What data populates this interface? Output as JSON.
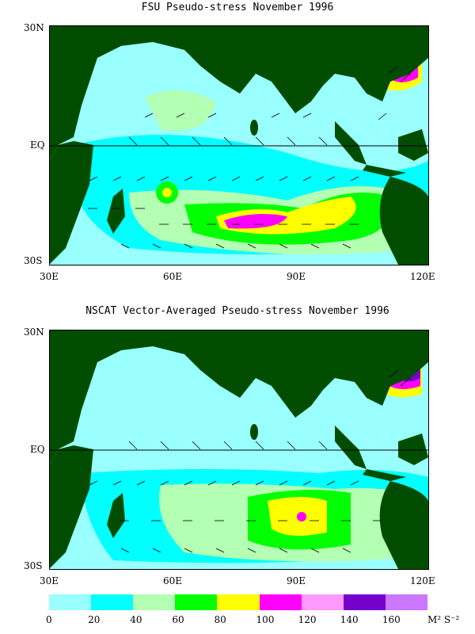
{
  "panels": [
    {
      "id": "fsu",
      "title": "FSU Pseudo-stress November 1996",
      "lat_labels": [
        "30N",
        "EQ",
        "30S"
      ],
      "lon_labels": [
        "30E",
        "60E",
        "90E",
        "120E"
      ]
    },
    {
      "id": "nscat",
      "title": "NSCAT Vector-Averaged Pseudo-stress November 1996",
      "lat_labels": [
        "30N",
        "EQ",
        "30S"
      ],
      "lon_labels": [
        "30E",
        "60E",
        "90E",
        "120E"
      ]
    }
  ],
  "colorbar": {
    "ticks": [
      "0",
      "20",
      "40",
      "60",
      "80",
      "100",
      "120",
      "140",
      "160"
    ],
    "unit": "M² S⁻²",
    "colors": [
      "#99ffff",
      "#00ffff",
      "#b3ffb3",
      "#00ff00",
      "#ffff00",
      "#ff00ff",
      "#ff99ff",
      "#7700cc",
      "#cc77ff"
    ]
  },
  "colors": {
    "land": "#004d00",
    "ocean_base": "#99ffff",
    "coast": "#a0a0a0",
    "arrow": "#000000"
  }
}
